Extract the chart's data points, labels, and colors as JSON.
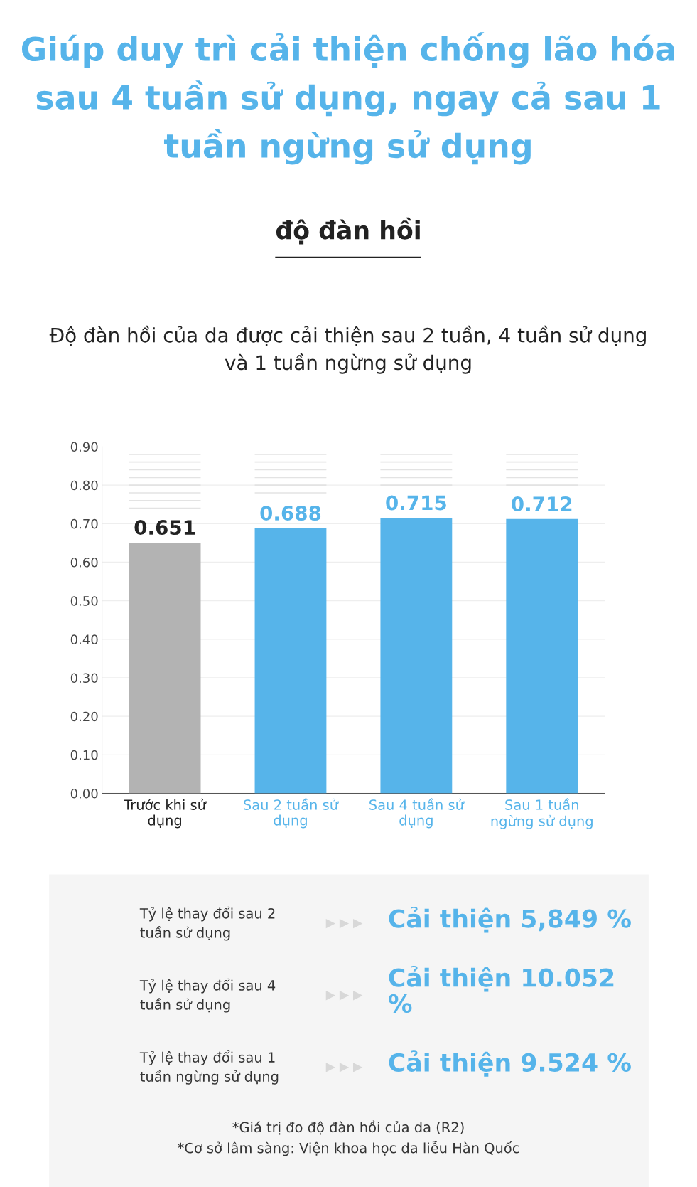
{
  "chart_data": {
    "type": "bar",
    "title": "Giúp duy trì cải thiện chống lão hóa sau 4 tuần sử dụng, ngay cả sau 1 tuần ngừng sử dụng",
    "subtitle": "độ đàn hồi",
    "xlabel": "Độ đàn hồi của da được cải thiện sau 2 tuần, 4 tuần sử dụng\nvà 1 tuần ngừng sử dụng",
    "categories": [
      "Trước khi sử\ndụng",
      "Sau 2 tuần sử\ndụng",
      "Sau 4 tuần sử\ndụng",
      "Sau 1 tuần\nngừng sử dụng"
    ],
    "values": [
      0.651,
      0.688,
      0.715,
      0.712
    ],
    "colors": [
      "#b3b3b3",
      "#56b4ea",
      "#56b4ea",
      "#56b4ea"
    ],
    "value_labels": [
      "0.651",
      "0.688",
      "0.715",
      "0.712"
    ],
    "ylim": [
      0,
      0.9
    ],
    "yticks": [
      {
        "value": 0,
        "label": "0.00"
      },
      {
        "value": 0.1,
        "label": "0.10"
      },
      {
        "value": 0.2,
        "label": "0.20"
      },
      {
        "value": 0.3,
        "label": "0.30"
      },
      {
        "value": 0.4,
        "label": "0.40"
      },
      {
        "value": 0.5,
        "label": "0.50"
      },
      {
        "value": 0.6,
        "label": "0.60"
      },
      {
        "value": 0.7,
        "label": "0.70"
      },
      {
        "value": 0.8,
        "label": "0.80"
      },
      {
        "value": 0.9,
        "label": "0.90"
      }
    ],
    "grid": "y",
    "annotations": [
      "Tỷ lệ thay đổi sau 2\ntuần sử dụng",
      "Cải thiện 5,849 %",
      "Tỷ lệ thay đổi sau 4\ntuần sử dụng",
      "Cải thiện 10.052\n%",
      "Tỷ lệ thay đổi sau 1\ntuần ngừng sử dụng",
      "Cải thiện 9.524 %",
      "*Giá trị đo độ đàn hồi của da (R2)",
      "*Cơ sở lâm sàng: Viện khoa học da liễu Hàn Quốc"
    ]
  }
}
